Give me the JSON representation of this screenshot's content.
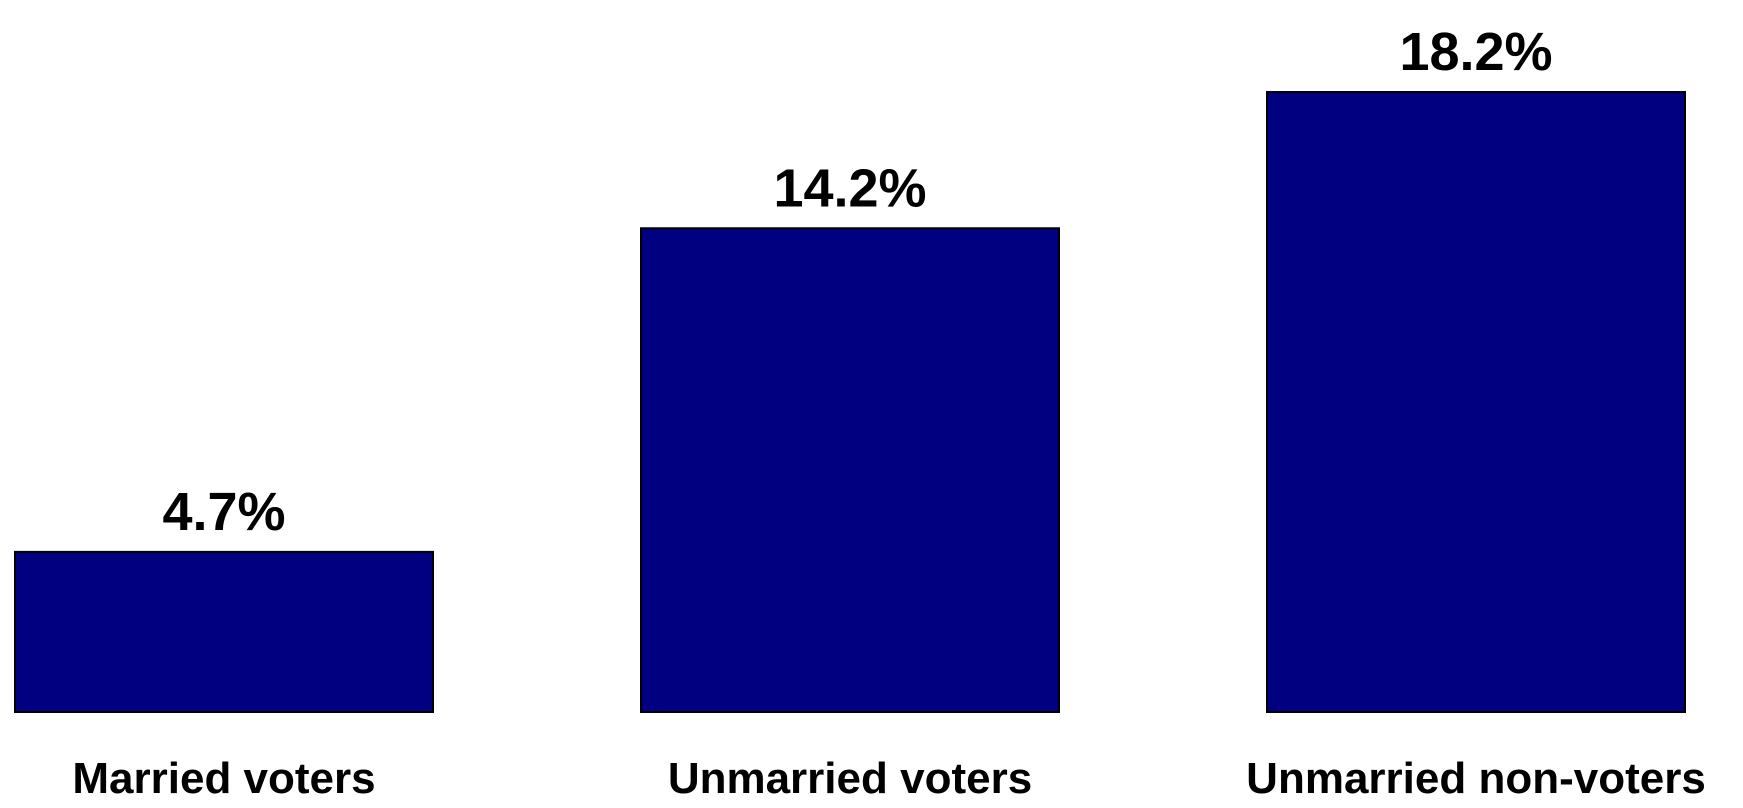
{
  "chart_data": {
    "type": "bar",
    "categories": [
      "Married voters",
      "Unmarried voters",
      "Unmarried non-voters"
    ],
    "values": [
      4.7,
      14.2,
      18.2
    ],
    "value_labels": [
      "4.7%",
      "14.2%",
      "18.2%"
    ],
    "ylim": [
      0,
      18.2
    ],
    "grid": false,
    "legend": "none",
    "colors": {
      "bar_fill": "#000080",
      "bar_stroke": "#000000",
      "text": "#000000",
      "background": "#ffffff"
    }
  }
}
